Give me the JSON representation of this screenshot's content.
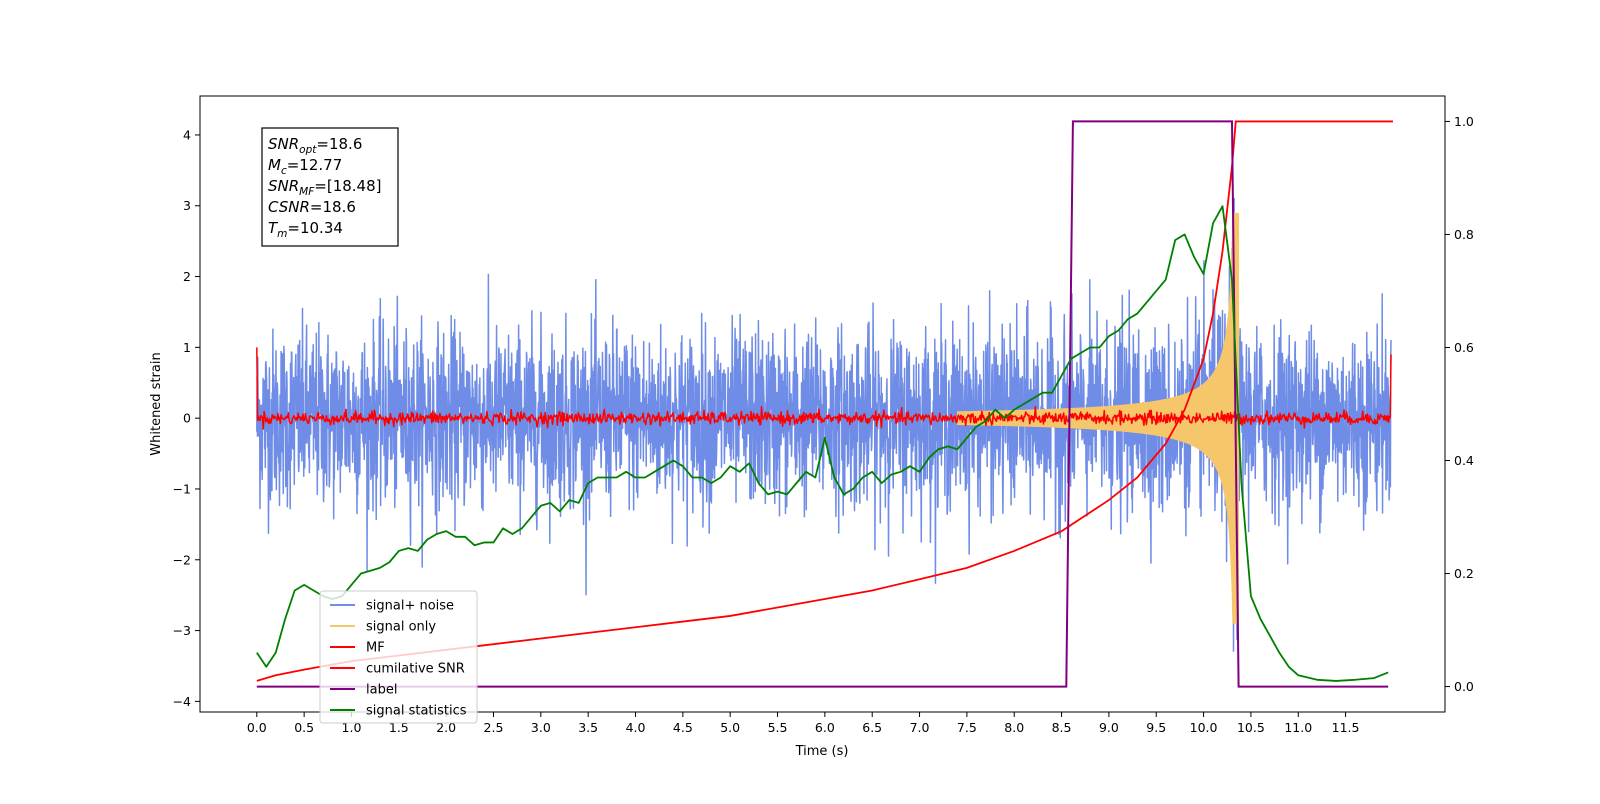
{
  "chart_data": {
    "type": "line",
    "title": "",
    "xlabel": "Time (s)",
    "ylabel": "Whitened strain",
    "xlim": [
      -0.6,
      12.55
    ],
    "ylim": [
      -4.15,
      4.55
    ],
    "y2lim": [
      -0.045,
      1.045
    ],
    "x_ticks": [
      0.0,
      0.5,
      1.0,
      1.5,
      2.0,
      2.5,
      3.0,
      3.5,
      4.0,
      4.5,
      5.0,
      5.5,
      6.0,
      6.5,
      7.0,
      7.5,
      8.0,
      8.5,
      9.0,
      9.5,
      10.0,
      10.5,
      11.0,
      11.5
    ],
    "x_tick_labels": [
      "0.0",
      "0.5",
      "1.0",
      "1.5",
      "2.0",
      "2.5",
      "3.0",
      "3.5",
      "4.0",
      "4.5",
      "5.0",
      "5.5",
      "6.0",
      "6.5",
      "7.0",
      "7.5",
      "8.0",
      "8.5",
      "9.0",
      "9.5",
      "10.0",
      "10.5",
      "11.0",
      "11.5"
    ],
    "y_ticks": [
      4,
      3,
      2,
      1,
      0,
      -1,
      -2,
      -3,
      -4
    ],
    "y_tick_labels": [
      "4",
      "3",
      "2",
      "1",
      "0",
      "−1",
      "−2",
      "−3",
      "−4"
    ],
    "y2_ticks": [
      1.0,
      0.8,
      0.6,
      0.4,
      0.2,
      0.0
    ],
    "y2_tick_labels": [
      "1.0",
      "0.8",
      "0.6",
      "0.4",
      "0.2",
      "0.0"
    ],
    "grid": false,
    "legend_position": "bottom-left",
    "annotation": [
      {
        "symbol": "SNR",
        "sub": "opt",
        "value": "=18.6"
      },
      {
        "symbol": "M",
        "sub": "c",
        "value": "=12.77"
      },
      {
        "symbol": "SNR",
        "sub": "MF",
        "value": "=[18.48]"
      },
      {
        "symbol": "CSNR",
        "sub": "",
        "value": "=18.6"
      },
      {
        "symbol": "T",
        "sub": "m",
        "value": "=10.34"
      }
    ],
    "params": {
      "noise_std": 0.62,
      "noise_peak": 3.1,
      "merger_time": 10.34,
      "signal_start_time": 7.4,
      "signal_peak": 2.9,
      "mf_noise_std": 0.045,
      "mf_edge_value": 1.0
    },
    "series": [
      {
        "name": "signal+ noise",
        "color": "#6f8de6",
        "axis": "left",
        "kind": "noisy-signal"
      },
      {
        "name": "signal only",
        "color": "#f5c76a",
        "axis": "left",
        "kind": "chirp"
      },
      {
        "name": "MF",
        "color": "#ff0000",
        "axis": "left",
        "kind": "matched-filter"
      },
      {
        "name": "cumilative SNR",
        "color": "#ff0000",
        "axis": "right",
        "x": [
          0.0,
          0.2,
          0.5,
          1.0,
          1.5,
          2.0,
          2.5,
          3.0,
          3.5,
          4.0,
          4.5,
          5.0,
          5.5,
          6.0,
          6.5,
          7.0,
          7.5,
          8.0,
          8.5,
          9.0,
          9.3,
          9.6,
          9.8,
          10.0,
          10.1,
          10.2,
          10.3,
          10.34,
          10.4,
          11.0,
          12.0
        ],
        "y": [
          0.01,
          0.02,
          0.03,
          0.045,
          0.055,
          0.065,
          0.075,
          0.085,
          0.095,
          0.105,
          0.115,
          0.125,
          0.14,
          0.155,
          0.17,
          0.19,
          0.21,
          0.24,
          0.275,
          0.33,
          0.37,
          0.43,
          0.49,
          0.58,
          0.66,
          0.77,
          0.92,
          1.0,
          1.0,
          1.0,
          1.0
        ]
      },
      {
        "name": "label",
        "color": "#800080",
        "axis": "right",
        "x": [
          0.0,
          8.55,
          8.62,
          10.3,
          10.37,
          11.95
        ],
        "y": [
          0.0,
          0.0,
          1.0,
          1.0,
          0.0,
          0.0
        ]
      },
      {
        "name": "signal statistics",
        "color": "#008000",
        "axis": "right",
        "x": [
          0.0,
          0.1,
          0.2,
          0.3,
          0.4,
          0.5,
          0.6,
          0.7,
          0.8,
          0.9,
          1.0,
          1.1,
          1.2,
          1.3,
          1.4,
          1.5,
          1.6,
          1.7,
          1.8,
          1.9,
          2.0,
          2.1,
          2.2,
          2.3,
          2.4,
          2.5,
          2.6,
          2.7,
          2.8,
          2.9,
          3.0,
          3.1,
          3.2,
          3.3,
          3.4,
          3.5,
          3.6,
          3.7,
          3.8,
          3.9,
          4.0,
          4.1,
          4.2,
          4.3,
          4.4,
          4.5,
          4.6,
          4.7,
          4.8,
          4.9,
          5.0,
          5.1,
          5.2,
          5.3,
          5.4,
          5.5,
          5.6,
          5.7,
          5.8,
          5.9,
          6.0,
          6.1,
          6.2,
          6.3,
          6.4,
          6.5,
          6.6,
          6.7,
          6.8,
          6.9,
          7.0,
          7.1,
          7.2,
          7.3,
          7.4,
          7.5,
          7.6,
          7.7,
          7.8,
          7.9,
          8.0,
          8.1,
          8.2,
          8.3,
          8.4,
          8.5,
          8.6,
          8.7,
          8.8,
          8.9,
          9.0,
          9.1,
          9.2,
          9.3,
          9.4,
          9.5,
          9.6,
          9.7,
          9.8,
          9.9,
          10.0,
          10.1,
          10.2,
          10.3,
          10.4,
          10.5,
          10.6,
          10.7,
          10.8,
          10.9,
          11.0,
          11.2,
          11.4,
          11.6,
          11.8,
          11.95
        ],
        "y": [
          0.06,
          0.035,
          0.06,
          0.12,
          0.17,
          0.18,
          0.17,
          0.16,
          0.155,
          0.16,
          0.18,
          0.2,
          0.205,
          0.21,
          0.22,
          0.24,
          0.245,
          0.24,
          0.26,
          0.27,
          0.275,
          0.265,
          0.265,
          0.25,
          0.255,
          0.255,
          0.28,
          0.27,
          0.28,
          0.3,
          0.32,
          0.325,
          0.31,
          0.33,
          0.325,
          0.36,
          0.37,
          0.37,
          0.37,
          0.38,
          0.37,
          0.37,
          0.38,
          0.39,
          0.4,
          0.39,
          0.37,
          0.37,
          0.36,
          0.37,
          0.39,
          0.38,
          0.395,
          0.36,
          0.34,
          0.345,
          0.34,
          0.36,
          0.38,
          0.37,
          0.44,
          0.37,
          0.34,
          0.35,
          0.37,
          0.38,
          0.36,
          0.375,
          0.38,
          0.39,
          0.38,
          0.405,
          0.42,
          0.425,
          0.42,
          0.44,
          0.46,
          0.47,
          0.49,
          0.475,
          0.49,
          0.5,
          0.51,
          0.52,
          0.52,
          0.55,
          0.58,
          0.59,
          0.6,
          0.6,
          0.62,
          0.63,
          0.65,
          0.66,
          0.68,
          0.7,
          0.72,
          0.79,
          0.8,
          0.76,
          0.73,
          0.82,
          0.85,
          0.72,
          0.36,
          0.16,
          0.12,
          0.09,
          0.06,
          0.035,
          0.02,
          0.012,
          0.01,
          0.012,
          0.015,
          0.025
        ]
      }
    ]
  }
}
